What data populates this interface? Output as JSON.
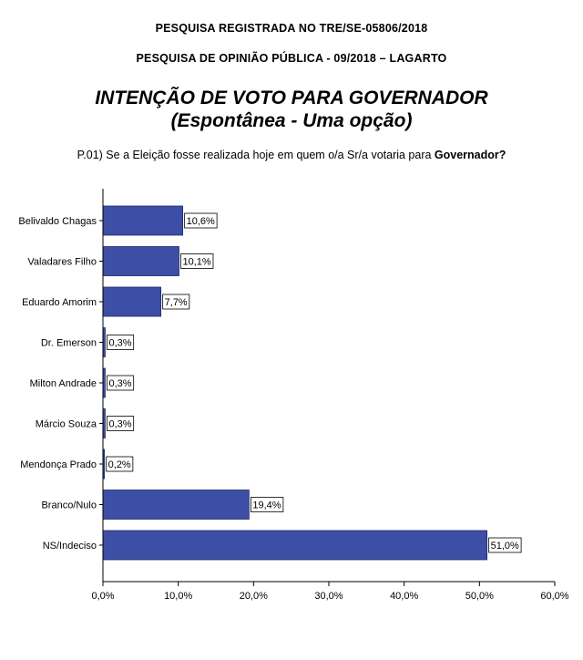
{
  "header": {
    "registration": "PESQUISA REGISTRADA NO TRE/SE-05806/2018",
    "survey": "PESQUISA DE OPINIÃO PÚBLICA - 09/2018 – LAGARTO",
    "title": "INTENÇÃO DE VOTO PARA GOVERNADOR",
    "subtitle": "(Espontânea - Uma opção)",
    "question_prefix": "P.01) Se a Eleição fosse realizada hoje em quem o/a Sr/a votaria para ",
    "question_bold": "Governador?"
  },
  "chart_data": {
    "type": "bar",
    "orientation": "horizontal",
    "categories": [
      "Belivaldo Chagas",
      "Valadares Filho",
      "Eduardo Amorim",
      "Dr. Emerson",
      "Milton Andrade",
      "Márcio Souza",
      "Mendonça Prado",
      "Branco/Nulo",
      "NS/Indeciso"
    ],
    "values": [
      10.6,
      10.1,
      7.7,
      0.3,
      0.3,
      0.3,
      0.2,
      19.4,
      51.0
    ],
    "value_labels": [
      "10,6%",
      "10,1%",
      "7,7%",
      "0,3%",
      "0,3%",
      "0,3%",
      "0,2%",
      "19,4%",
      "51,0%"
    ],
    "xlim": [
      0,
      60
    ],
    "xticks": [
      0,
      10,
      20,
      30,
      40,
      50,
      60
    ],
    "xtick_labels": [
      "0,0%",
      "10,0%",
      "20,0%",
      "30,0%",
      "40,0%",
      "50,0%",
      "60,0%"
    ],
    "bar_color": "#3d4ea6",
    "grid": false
  }
}
